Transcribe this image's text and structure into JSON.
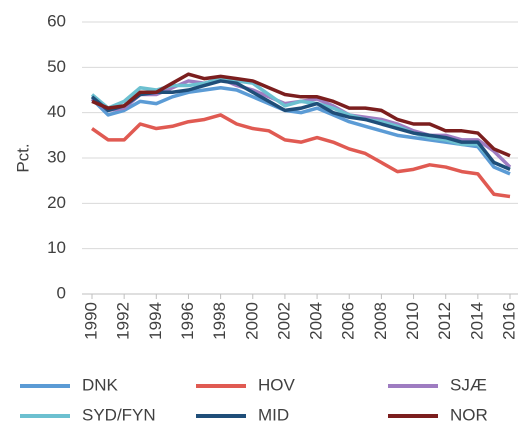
{
  "chart_data": {
    "type": "line",
    "y_label": "Pct.",
    "x": [
      1990,
      1991,
      1992,
      1993,
      1994,
      1995,
      1996,
      1997,
      1998,
      1999,
      2000,
      2001,
      2002,
      2003,
      2004,
      2005,
      2006,
      2007,
      2008,
      2009,
      2010,
      2011,
      2012,
      2013,
      2014,
      2015,
      2016
    ],
    "xlim": [
      1990,
      2016
    ],
    "xticks": [
      1990,
      1992,
      1994,
      1996,
      1998,
      2000,
      2002,
      2004,
      2006,
      2008,
      2010,
      2012,
      2014,
      2016
    ],
    "ylim": [
      0,
      60
    ],
    "yticks": [
      0,
      10,
      20,
      30,
      40,
      50,
      60
    ],
    "grid": true,
    "series": [
      {
        "name": "DNK",
        "color": "#5b9bd5",
        "values": [
          43,
          39.5,
          40.5,
          42.5,
          42,
          43.5,
          44.5,
          45,
          45.5,
          45,
          43.5,
          42,
          40.5,
          40,
          41,
          39.5,
          38,
          37,
          36,
          35,
          34.5,
          34,
          33.5,
          33,
          32.5,
          28,
          26.5
        ]
      },
      {
        "name": "HOV",
        "color": "#e05a52",
        "values": [
          36.5,
          34,
          34,
          37.5,
          36.5,
          37,
          38,
          38.5,
          39.5,
          37.5,
          36.5,
          36,
          34,
          33.5,
          34.5,
          33.5,
          32,
          31,
          29,
          27,
          27.5,
          28.5,
          28,
          27,
          26.5,
          22,
          21.5
        ]
      },
      {
        "name": "SJÆ",
        "color": "#9e7cc1",
        "values": [
          43,
          40.5,
          41,
          44,
          44,
          45.5,
          47,
          46.5,
          47.5,
          46,
          45,
          43.5,
          42,
          42.5,
          43,
          41.5,
          39.5,
          39,
          38.5,
          37.5,
          36,
          35,
          35,
          34,
          34,
          31.5,
          28
        ]
      },
      {
        "name": "SYD/FYN",
        "color": "#6cc0d0",
        "values": [
          44,
          41,
          42.5,
          45.5,
          45,
          46,
          46,
          46.5,
          47.5,
          47,
          46.5,
          44,
          41.5,
          42.5,
          42,
          41,
          39.5,
          38.5,
          38,
          37,
          35.5,
          34.5,
          34,
          33,
          33,
          29,
          27.5
        ]
      },
      {
        "name": "MID",
        "color": "#1f4e79",
        "values": [
          43.5,
          40.5,
          41.5,
          44,
          44.5,
          44.5,
          45,
          46,
          47,
          46.5,
          44.5,
          42.5,
          40.5,
          41,
          42,
          40,
          39,
          38.5,
          37.5,
          36.5,
          35.5,
          35,
          34.5,
          33.5,
          33.5,
          29,
          27.5
        ]
      },
      {
        "name": "NOR",
        "color": "#7b1e1e",
        "values": [
          42.5,
          41,
          41.5,
          44.5,
          44.5,
          46.5,
          48.5,
          47.5,
          48,
          47.5,
          47,
          45.5,
          44,
          43.5,
          43.5,
          42.5,
          41,
          41,
          40.5,
          38.5,
          37.5,
          37.5,
          36,
          36,
          35.5,
          32,
          30.5
        ]
      }
    ]
  }
}
